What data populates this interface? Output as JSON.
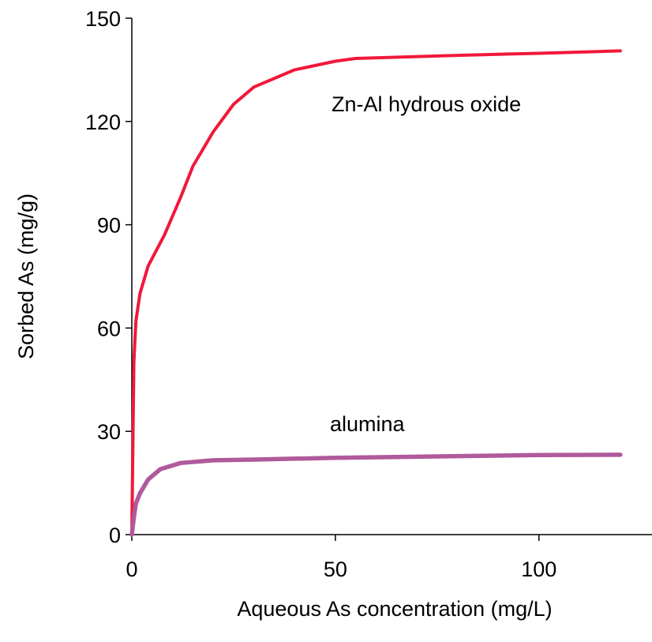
{
  "chart_data": {
    "type": "line",
    "xlabel": "Aqueous As concentration (mg/L)",
    "ylabel": "Sorbed As (mg/g)",
    "xlim": [
      0,
      127
    ],
    "xticks": [
      0,
      50,
      100
    ],
    "ylim": [
      0,
      150
    ],
    "yticks": [
      0,
      30,
      60,
      90,
      120,
      150
    ],
    "series": [
      {
        "name": "Zn-Al hydrous oxide",
        "color": "#f0183a",
        "x": [
          0,
          0.3,
          0.5,
          1,
          2,
          4,
          8,
          12,
          15,
          20,
          25,
          30,
          40,
          50,
          55,
          80,
          100,
          120
        ],
        "values": [
          0,
          30,
          50,
          62,
          70,
          78,
          87,
          98,
          107,
          117,
          125,
          130,
          135,
          137.5,
          138.3,
          139.2,
          139.8,
          140.5
        ]
      },
      {
        "name": "alumina",
        "color": "#b05a9c",
        "x": [
          0,
          0.5,
          1,
          2,
          4,
          7,
          12,
          20,
          30,
          50,
          80,
          100,
          120
        ],
        "values": [
          0,
          5,
          9,
          12,
          16,
          19,
          20.8,
          21.6,
          21.8,
          22.3,
          22.8,
          23.1,
          23.2
        ]
      }
    ]
  }
}
